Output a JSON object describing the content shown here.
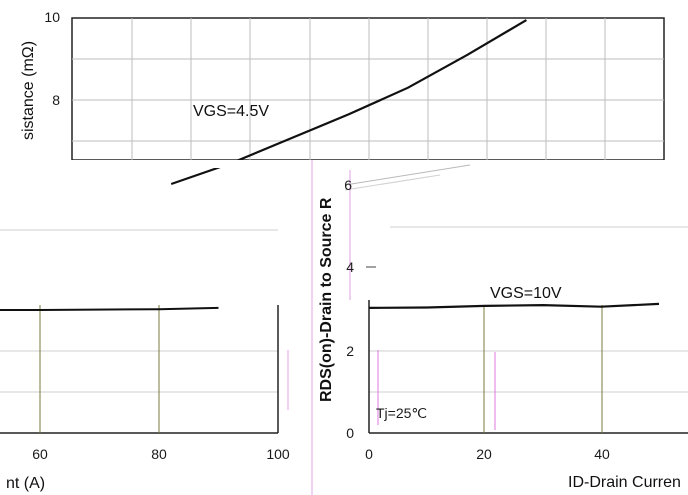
{
  "chart_data": [
    {
      "type": "line",
      "panel": "top",
      "title": "",
      "ylabel": "sistance (mΩ)",
      "xlabel": "",
      "ylim": [
        6,
        10
      ],
      "yticks": [
        10,
        8
      ],
      "grid": true,
      "series": [
        {
          "name": "VGS=4.5V",
          "x": [
            10,
            20,
            30,
            40,
            50,
            60,
            70
          ],
          "y": [
            5.95,
            6.45,
            7.05,
            7.65,
            8.3,
            9.1,
            9.95
          ]
        }
      ],
      "annotations": [
        {
          "text": "VGS=4.5V"
        }
      ]
    },
    {
      "type": "line",
      "panel": "bottom-left",
      "xlabel": "nt (A)",
      "xlim": [
        40,
        100
      ],
      "xticks": [
        60,
        80,
        100
      ],
      "grid": true,
      "series": [
        {
          "name": "",
          "x": [
            40,
            60,
            80,
            90
          ],
          "y": [
            3.0,
            3.0,
            3.02,
            3.05
          ]
        }
      ]
    },
    {
      "type": "line",
      "panel": "bottom-right",
      "ylabel": "RDS(on)-Drain to Source R",
      "xlabel": "ID-Drain Curren",
      "xlim": [
        0,
        50
      ],
      "ylim": [
        0,
        6
      ],
      "xticks": [
        0,
        20,
        40
      ],
      "yticks": [
        0,
        2,
        4,
        6
      ],
      "grid": true,
      "series": [
        {
          "name": "VGS=10V",
          "x": [
            0,
            10,
            20,
            30,
            40,
            50
          ],
          "y": [
            3.05,
            3.06,
            3.1,
            3.12,
            3.08,
            3.15
          ]
        }
      ],
      "annotations": [
        {
          "text": "VGS=10V"
        },
        {
          "text": "Tj=25℃"
        }
      ]
    }
  ],
  "labels": {
    "top_ylabel": "sistance (mΩ)",
    "top_y10": "10",
    "top_y8": "8",
    "vgs45": "VGS=4.5V",
    "bl_xlabel": "nt (A)",
    "bl_x60": "60",
    "bl_x80": "80",
    "bl_x100": "100",
    "br_ylabel": "RDS(on)-Drain to Source R",
    "br_y0": "0",
    "br_y2": "2",
    "br_y4": "4",
    "br_y6": "6",
    "br_x0": "0",
    "br_x20": "20",
    "br_x40": "40",
    "br_xlabel": "ID-Drain Curren",
    "vgs10": "VGS=10V",
    "tj": "Tj=25℃"
  }
}
